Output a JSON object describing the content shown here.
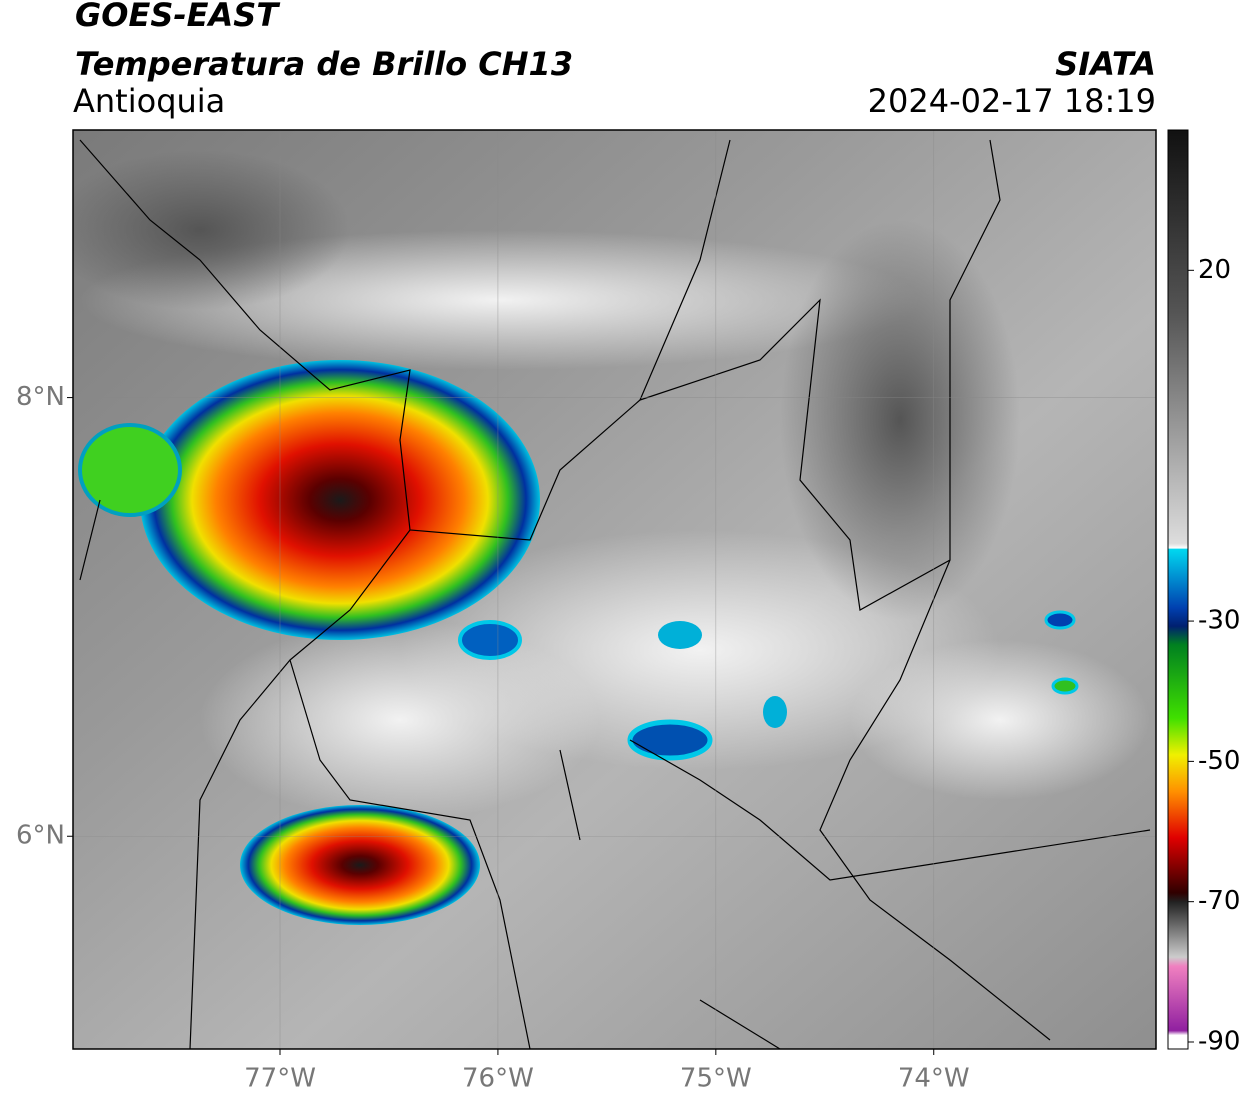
{
  "header": {
    "satellite": "GOES-EAST",
    "product": "Temperatura de Brillo CH13",
    "region": "Antioquia",
    "source": "SIATA",
    "datetime": "2024-02-17 18:19"
  },
  "map": {
    "lonlim": [
      -77.95,
      -72.98
    ],
    "latlim": [
      5.03,
      9.22
    ],
    "lon_ticks": [
      {
        "value": -77,
        "label": "77°W"
      },
      {
        "value": -76,
        "label": "76°W"
      },
      {
        "value": -75,
        "label": "75°W"
      },
      {
        "value": -74,
        "label": "74°W"
      }
    ],
    "lat_ticks": [
      {
        "value": 8,
        "label": "8°N"
      },
      {
        "value": 6,
        "label": "6°N"
      }
    ]
  },
  "colorbar": {
    "lim": [
      -91,
      40
    ],
    "ticks": [
      20,
      -30,
      -50,
      -70,
      -90
    ]
  }
}
